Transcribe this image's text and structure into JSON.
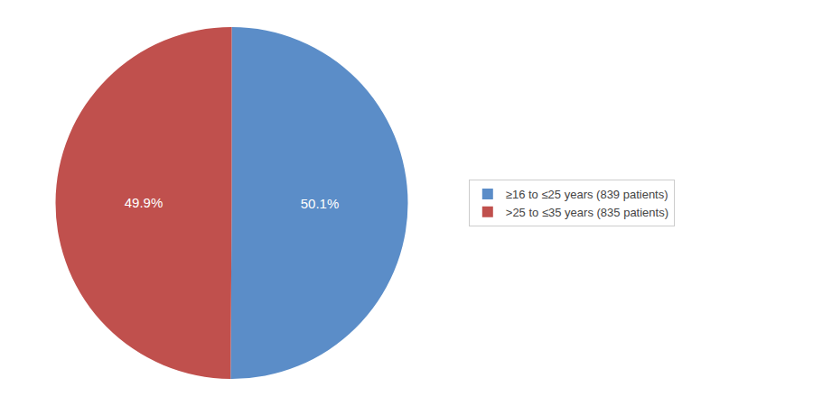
{
  "chart_data": {
    "type": "pie",
    "categories": [
      "≥16 to ≤25 years (839 patients)",
      ">25 to ≤35 years (835 patients)"
    ],
    "values": [
      50.1,
      49.9
    ],
    "value_labels": [
      "50.1%",
      "49.9%"
    ],
    "colors": [
      "#5b8dc8",
      "#c0504d"
    ],
    "data_labels": true,
    "legend": "right"
  }
}
